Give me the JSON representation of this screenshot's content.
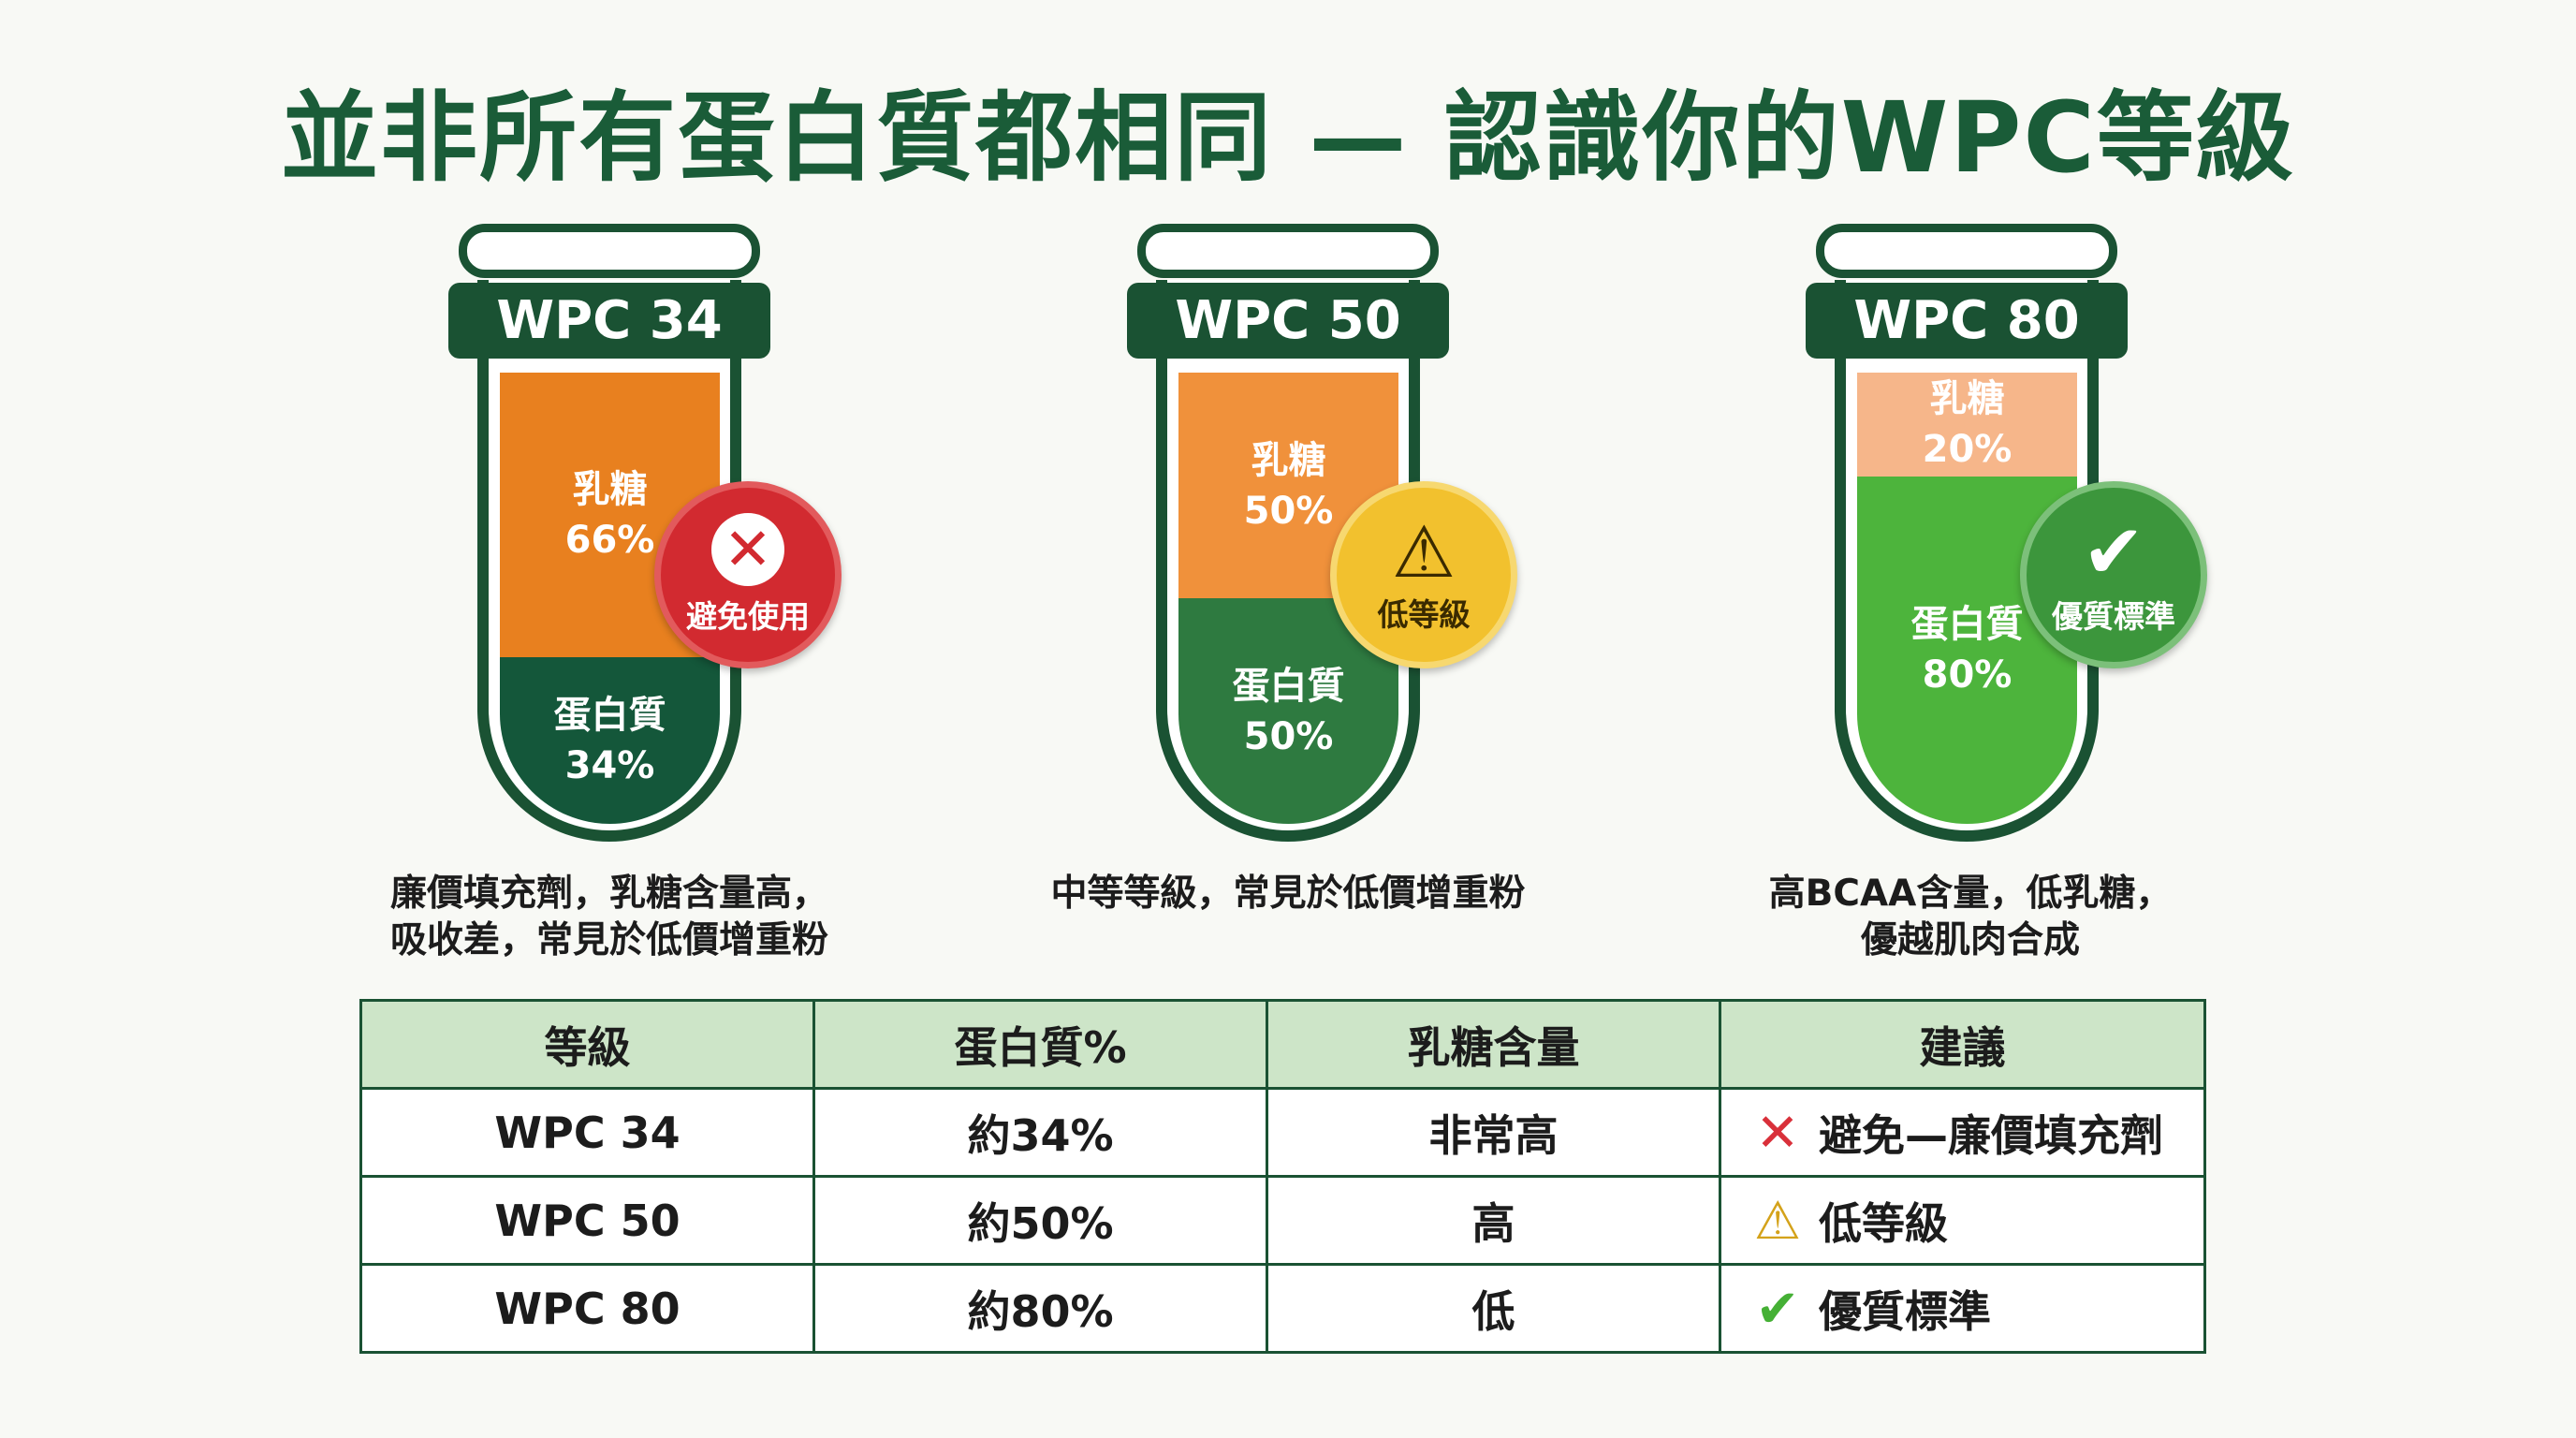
{
  "title": "並非所有蛋白質都相同 — 認識你的WPC等級",
  "tubes": [
    {
      "name": "WPC 34",
      "lactose_label": "乳糖",
      "lactose": "66%",
      "protein_label": "蛋白質",
      "protein": "34%",
      "badge": "避免使用",
      "badge_icon": "x-icon",
      "description": [
        "廉價填充劑，乳糖含量高，",
        "吸收差，常見於低價增重粉"
      ],
      "colors": {
        "lactose": "#e8801f",
        "protein": "#14573a",
        "badge": "#d22a30"
      }
    },
    {
      "name": "WPC 50",
      "lactose_label": "乳糖",
      "lactose": "50%",
      "protein_label": "蛋白質",
      "protein": "50%",
      "badge": "低等級",
      "badge_icon": "warning-icon",
      "description": [
        "中等等級，常見於低價增重粉"
      ],
      "colors": {
        "lactose": "#f0913b",
        "protein": "#2e7a40",
        "badge": "#f2c12e"
      }
    },
    {
      "name": "WPC 80",
      "lactose_label": "乳糖",
      "lactose": "20%",
      "protein_label": "蛋白質",
      "protein": "80%",
      "badge": "優質標準",
      "badge_icon": "check-icon",
      "description": [
        "高BCAA含量，低乳糖，",
        "優越肌肉合成"
      ],
      "colors": {
        "lactose": "#f6b68a",
        "protein": "#4db43c",
        "badge": "#3c963c"
      }
    }
  ],
  "table": {
    "headers": [
      "等級",
      "蛋白質%",
      "乳糖含量",
      "建議"
    ],
    "rows": [
      {
        "grade": "WPC 34",
        "protein": "約34%",
        "lactose": "非常高",
        "rec": "避免—廉價填充劑",
        "icon": "x-icon"
      },
      {
        "grade": "WPC 50",
        "protein": "約50%",
        "lactose": "高",
        "rec": "低等級",
        "icon": "warning-icon"
      },
      {
        "grade": "WPC 80",
        "protein": "約80%",
        "lactose": "低",
        "rec": "優質標準",
        "icon": "check-icon"
      }
    ]
  }
}
